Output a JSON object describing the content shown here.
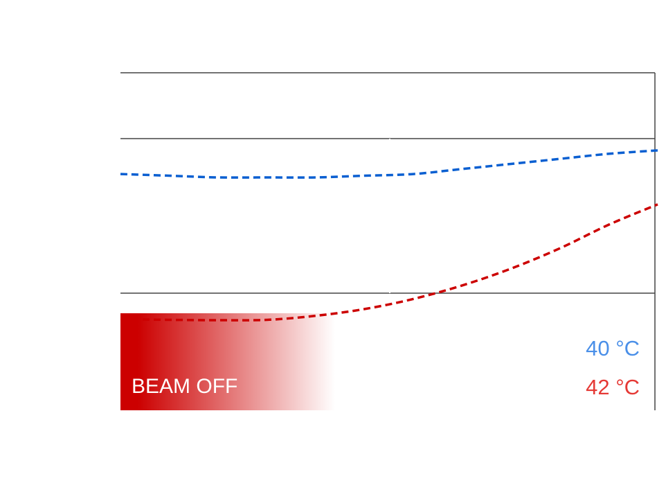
{
  "beam": {
    "status_label": "BEAM OFF",
    "status_color": "#cc0000"
  },
  "readouts": {
    "blue_temp": "40 °C",
    "red_temp": "42 °C",
    "blue_color": "#4a8fe8",
    "red_color": "#e53935"
  },
  "chart_data": {
    "type": "line",
    "title": "",
    "xlabel": "",
    "ylabel": "",
    "grid": true,
    "series": [
      {
        "color": "#0a5fd1",
        "style": "dashed",
        "values": [
          0.7,
          0.695,
          0.69,
          0.69,
          0.69,
          0.695,
          0.7,
          0.715,
          0.73,
          0.745,
          0.76,
          0.77
        ]
      },
      {
        "color": "#cc0000",
        "style": "dashed",
        "values": [
          0.27,
          0.268,
          0.267,
          0.268,
          0.28,
          0.3,
          0.33,
          0.37,
          0.42,
          0.48,
          0.55,
          0.61
        ]
      }
    ]
  }
}
